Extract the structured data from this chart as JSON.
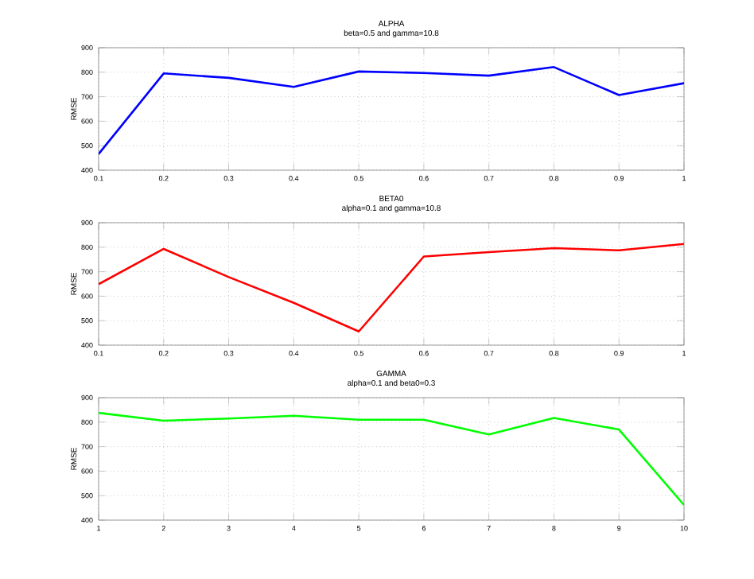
{
  "chart_data": [
    {
      "type": "line",
      "title": "ALPHA",
      "subtitle": "beta=0.5 and gamma=10.8",
      "ylabel": "RMSE",
      "x": [
        0.1,
        0.2,
        0.3,
        0.4,
        0.5,
        0.6,
        0.7,
        0.8,
        0.9,
        1
      ],
      "series": [
        {
          "color": "#0000ff",
          "values": [
            466,
            795,
            777,
            740,
            803,
            797,
            786,
            821,
            707,
            755
          ]
        }
      ],
      "xlim": [
        0.1,
        1
      ],
      "xticks": [
        0.1,
        0.2,
        0.3,
        0.4,
        0.5,
        0.6,
        0.7,
        0.8,
        0.9,
        1
      ],
      "ylim": [
        400,
        900
      ],
      "yticks": [
        400,
        500,
        600,
        700,
        800,
        900
      ],
      "grid": true,
      "line_style": "solid",
      "marker": "none"
    },
    {
      "type": "line",
      "title": "BETA0",
      "subtitle": "alpha=0.1 and gamma=10.8",
      "ylabel": "RMSE",
      "x": [
        0.1,
        0.2,
        0.3,
        0.4,
        0.5,
        0.6,
        0.7,
        0.8,
        0.9,
        1
      ],
      "series": [
        {
          "color": "#ff0000",
          "values": [
            649,
            793,
            678,
            573,
            456,
            762,
            780,
            796,
            787,
            813
          ]
        }
      ],
      "xlim": [
        0.1,
        1
      ],
      "xticks": [
        0.1,
        0.2,
        0.3,
        0.4,
        0.5,
        0.6,
        0.7,
        0.8,
        0.9,
        1
      ],
      "ylim": [
        400,
        900
      ],
      "yticks": [
        400,
        500,
        600,
        700,
        800,
        900
      ],
      "grid": true,
      "line_style": "solid",
      "marker": "none"
    },
    {
      "type": "line",
      "title": "GAMMA",
      "subtitle": "alpha=0.1 and beta0=0.3",
      "ylabel": "RMSE",
      "x": [
        1,
        2,
        3,
        4,
        5,
        6,
        7,
        8,
        9,
        10
      ],
      "series": [
        {
          "color": "#00ff00",
          "values": [
            838,
            806,
            815,
            826,
            810,
            810,
            750,
            817,
            770,
            462
          ]
        }
      ],
      "xlim": [
        1,
        10
      ],
      "xticks": [
        1,
        2,
        3,
        4,
        5,
        6,
        7,
        8,
        9,
        10
      ],
      "ylim": [
        400,
        900
      ],
      "yticks": [
        400,
        500,
        600,
        700,
        800,
        900
      ],
      "grid": true,
      "line_style": "solid",
      "marker": "none"
    }
  ]
}
